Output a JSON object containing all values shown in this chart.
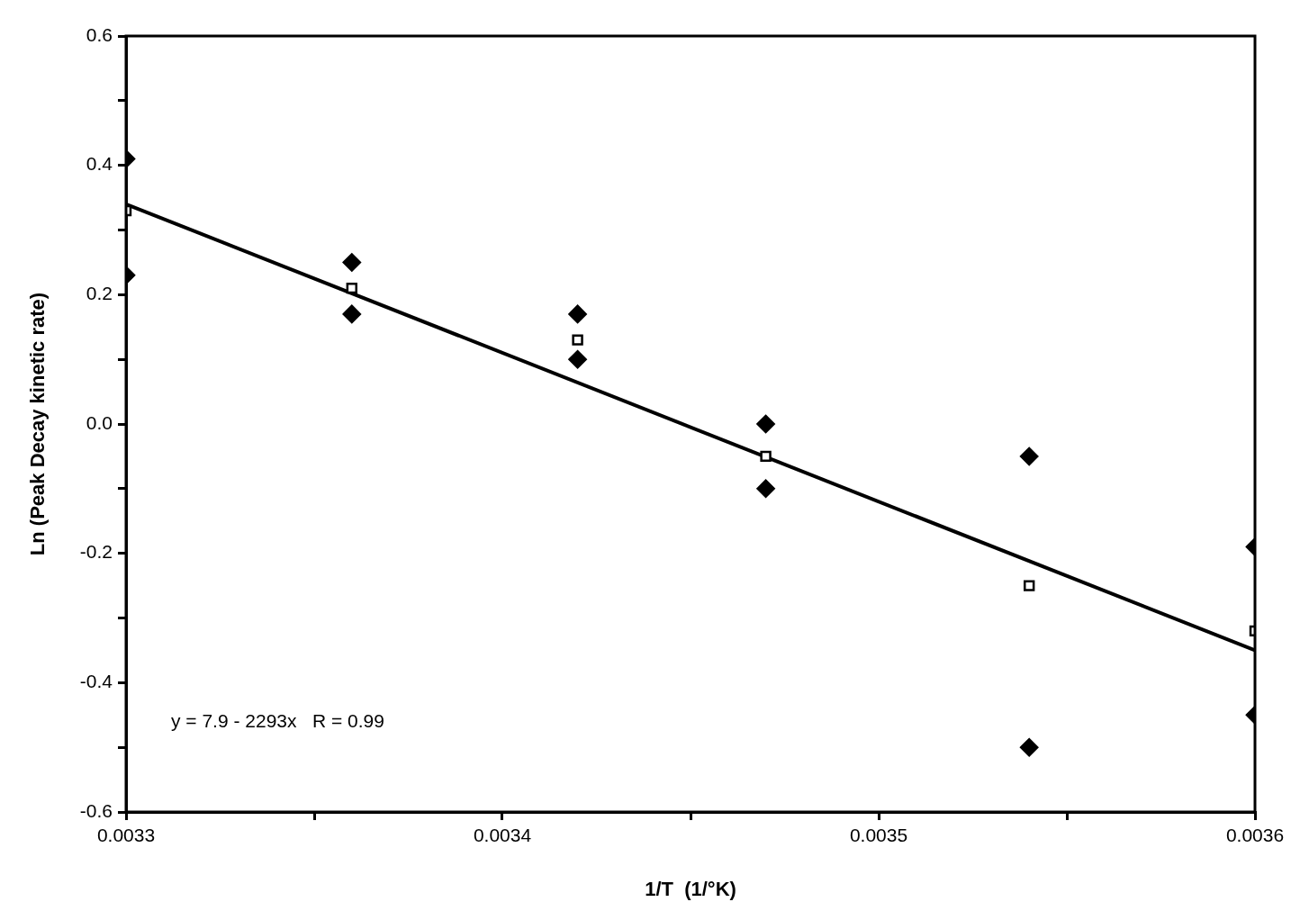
{
  "chart_data": {
    "type": "scatter",
    "xlabel": "1/T  (1/°K)",
    "ylabel": "Ln (Peak Decay kinetic rate)",
    "xlim": [
      0.0033,
      0.0036
    ],
    "xticks": [
      0.0033,
      {
        "value": 0.00335,
        "label": null
      },
      0.0034,
      {
        "value": 0.00345,
        "label": null
      },
      0.0035,
      {
        "value": 0.00355,
        "label": null
      },
      0.0036
    ],
    "ylim": [
      -0.6,
      0.6
    ],
    "yticks": [
      -0.6,
      {
        "value": -0.5,
        "label": null
      },
      -0.4,
      {
        "value": -0.3,
        "label": null
      },
      -0.2,
      {
        "value": -0.1,
        "label": null
      },
      {
        "value": 0,
        "label": "0.0"
      },
      {
        "value": 0.1,
        "label": null
      },
      0.2,
      {
        "value": 0.3,
        "label": null
      },
      0.4,
      {
        "value": 0.5,
        "label": null
      },
      0.6
    ],
    "grid": false,
    "legend": false,
    "annotations": [
      "y = 7.9 - 2293x   R = 0.99"
    ],
    "series": [
      {
        "marker": "diamond",
        "color": "#000000",
        "x": [
          0.0033,
          0.0033,
          0.00336,
          0.00336,
          0.00342,
          0.00342,
          0.00347,
          0.00347,
          0.00354,
          0.00354,
          0.0036,
          0.0036
        ],
        "values": [
          0.23,
          0.41,
          0.17,
          0.25,
          0.1,
          0.17,
          -0.1,
          0.0,
          -0.5,
          -0.05,
          -0.45,
          -0.19
        ]
      },
      {
        "marker": "square",
        "color": "#000000",
        "x": [
          0.0033,
          0.00336,
          0.00342,
          0.00347,
          0.00354,
          0.0036
        ],
        "values": [
          0.33,
          0.21,
          0.13,
          -0.05,
          -0.25,
          -0.32
        ]
      },
      {
        "type": "line",
        "marker": "none",
        "line_style": "solid",
        "color": "#000000",
        "x": [
          0.0033,
          0.0036
        ],
        "values": [
          0.34,
          -0.35
        ]
      }
    ]
  }
}
